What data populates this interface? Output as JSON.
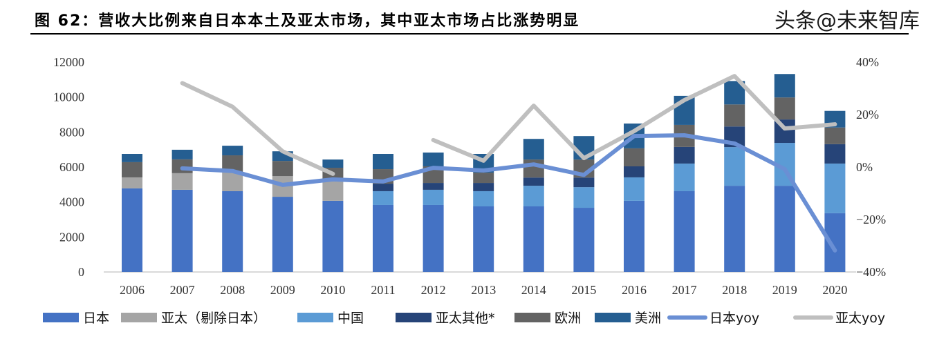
{
  "title": "图 62：营收大比例来自日本本土及亚太市场，其中亚太市场占比涨势明显",
  "watermark": "头条@未来智库",
  "chart_data": {
    "type": "bar",
    "stacked": true,
    "categories": [
      "2006",
      "2007",
      "2008",
      "2009",
      "2010",
      "2011",
      "2012",
      "2013",
      "2014",
      "2015",
      "2016",
      "2017",
      "2018",
      "2019",
      "2020"
    ],
    "y_left": {
      "ylim": [
        0,
        12000
      ],
      "ticks": [
        "0",
        "2000",
        "4000",
        "6000",
        "8000",
        "10000",
        "12000"
      ]
    },
    "y_right": {
      "ylim": [
        -40,
        40
      ],
      "ticks": [
        "−40%",
        "−20%",
        "0%",
        "20%",
        "40%"
      ]
    },
    "grid": false,
    "legend_position": "bottom",
    "series": [
      {
        "name": "日本",
        "kind": "bar",
        "color": "#4472C4",
        "values": [
          4780,
          4700,
          4620,
          4300,
          4070,
          3830,
          3830,
          3750,
          3750,
          3670,
          4070,
          4620,
          4930,
          4930,
          3360
        ]
      },
      {
        "name": "亚太（剔除日本）",
        "kind": "bar",
        "color": "#A5A5A5",
        "values": [
          630,
          950,
          1100,
          1180,
          1220,
          null,
          null,
          null,
          null,
          null,
          null,
          null,
          null,
          null,
          null
        ]
      },
      {
        "name": "中国",
        "kind": "bar",
        "color": "#5B9BD5",
        "values": [
          null,
          null,
          null,
          null,
          null,
          790,
          870,
          870,
          1180,
          1180,
          1340,
          1580,
          2210,
          2450,
          2840
        ]
      },
      {
        "name": "亚太其他*",
        "kind": "bar",
        "color": "#264478",
        "values": [
          null,
          null,
          null,
          null,
          null,
          430,
          390,
          470,
          470,
          550,
          630,
          950,
          1180,
          1340,
          1110
        ]
      },
      {
        "name": "欧洲",
        "kind": "bar",
        "color": "#636363",
        "values": [
          870,
          790,
          950,
          870,
          670,
          830,
          950,
          590,
          1030,
          1030,
          1030,
          1260,
          1260,
          1260,
          950
        ]
      },
      {
        "name": "美洲",
        "kind": "bar",
        "color": "#255E91",
        "values": [
          470,
          550,
          550,
          550,
          470,
          870,
          790,
          1070,
          1180,
          1340,
          1420,
          1660,
          1340,
          1340,
          950
        ]
      },
      {
        "name": "日本yoy",
        "kind": "line",
        "axis": "right",
        "unit": "%",
        "color": "#6A8FD4",
        "values": [
          null,
          -0.5,
          -1.5,
          -6.8,
          -4.7,
          -5.5,
          -0.3,
          -1.3,
          1.0,
          -3.0,
          11.8,
          12.1,
          9.0,
          -0.8,
          -31.8
        ]
      },
      {
        "name": "亚太yoy",
        "kind": "line",
        "axis": "right",
        "unit": "%",
        "color": "#BFBFBF",
        "values": [
          null,
          32,
          23,
          6,
          -2.6,
          null,
          10.3,
          2.4,
          23.4,
          3.4,
          13.7,
          25.5,
          34.7,
          14.7,
          16.3
        ]
      }
    ]
  }
}
